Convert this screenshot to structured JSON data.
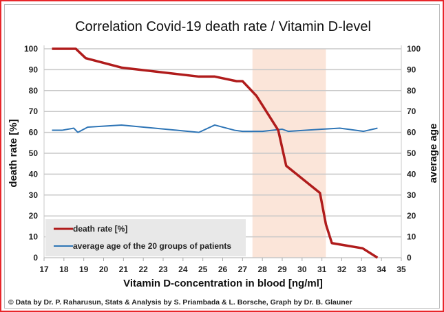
{
  "chart_data": {
    "type": "line",
    "title": "Correlation Covid-19 death rate / Vitamin D-level",
    "xlabel": "Vitamin D-concentration  in blood [ng/ml]",
    "ylabel": "death rate [%]",
    "y2label": "average age",
    "xlim": [
      17,
      35
    ],
    "ylim": [
      0,
      100
    ],
    "y2lim": [
      0,
      100
    ],
    "xticks": [
      "17",
      "18",
      "19",
      "20",
      "21",
      "22",
      "23",
      "24",
      "25",
      "26",
      "27",
      "28",
      "29",
      "30",
      "31",
      "32",
      "33",
      "34",
      "35"
    ],
    "yticks": [
      "0",
      "10",
      "20",
      "30",
      "40",
      "50",
      "60",
      "70",
      "80",
      "90",
      "100"
    ],
    "grid": "horizontal",
    "legend_position": "bottom-left",
    "highlight_band": {
      "x": [
        27.5,
        31.2
      ],
      "color": "#fbe5d9"
    },
    "series": [
      {
        "name": "death rate [%]",
        "axis": "left",
        "color": "#b01c1c",
        "x": [
          17.4,
          18.6,
          19.1,
          20.9,
          24.8,
          25.6,
          26.7,
          27.0,
          27.7,
          28.8,
          29.2,
          30.9,
          31.2,
          31.5,
          33.05,
          33.8
        ],
        "y": [
          100,
          100,
          95.5,
          91,
          86.7,
          86.7,
          84.5,
          84.5,
          77.5,
          61,
          44,
          31,
          16,
          7,
          4.5,
          0
        ]
      },
      {
        "name": "average age of the 20 groups of patients",
        "axis": "right",
        "color": "#2e75b6",
        "x": [
          17.4,
          17.9,
          18.5,
          18.7,
          19.2,
          20.9,
          24.8,
          25.6,
          26.6,
          27.0,
          28.0,
          29.0,
          29.3,
          31.0,
          31.9,
          33.1,
          33.8
        ],
        "y": [
          61,
          61,
          62,
          60,
          62.5,
          63.5,
          60,
          63.5,
          61,
          60.5,
          60.5,
          61.5,
          60.5,
          61.5,
          62,
          60.5,
          62
        ]
      }
    ],
    "footer": "© Data by Dr. P. Raharusun, Stats & Analysis by S. Priambada & L. Borsche, Graph by Dr. B. Glauner"
  }
}
